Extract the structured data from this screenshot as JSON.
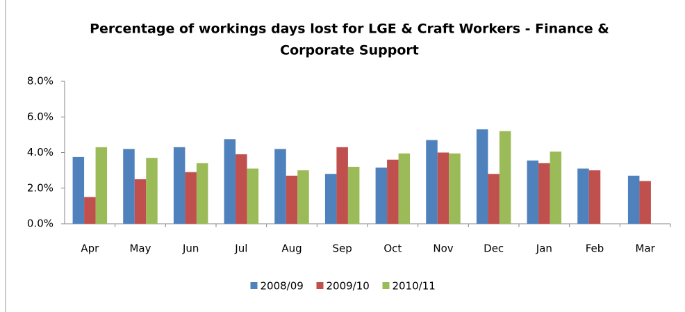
{
  "chart_data": {
    "type": "bar",
    "title": [
      "Percentage of workings days lost for LGE & Craft Workers - Finance &",
      "Corporate Support"
    ],
    "categories": [
      "Apr",
      "May",
      "Jun",
      "Jul",
      "Aug",
      "Sep",
      "Oct",
      "Nov",
      "Dec",
      "Jan",
      "Feb",
      "Mar"
    ],
    "series": [
      {
        "name": "2008/09",
        "color": "#4f81bd",
        "values": [
          3.75,
          4.2,
          4.3,
          4.75,
          4.2,
          2.8,
          3.15,
          4.7,
          5.3,
          3.55,
          3.1,
          2.7
        ]
      },
      {
        "name": "2009/10",
        "color": "#c0504d",
        "values": [
          1.5,
          2.5,
          2.9,
          3.9,
          2.7,
          4.3,
          3.6,
          4.0,
          2.8,
          3.4,
          3.0,
          2.4
        ]
      },
      {
        "name": "2010/11",
        "color": "#9bbb59",
        "values": [
          4.3,
          3.7,
          3.4,
          3.1,
          3.0,
          3.2,
          3.95,
          3.95,
          5.2,
          4.05,
          null,
          null
        ]
      }
    ],
    "ylim": [
      0,
      8
    ],
    "yticks": [
      {
        "value": 0,
        "label": "0.0%"
      },
      {
        "value": 2,
        "label": "2.0%"
      },
      {
        "value": 4,
        "label": "4.0%"
      },
      {
        "value": 6,
        "label": "6.0%"
      },
      {
        "value": 8,
        "label": "8.0%"
      }
    ],
    "legend": "bottom"
  }
}
